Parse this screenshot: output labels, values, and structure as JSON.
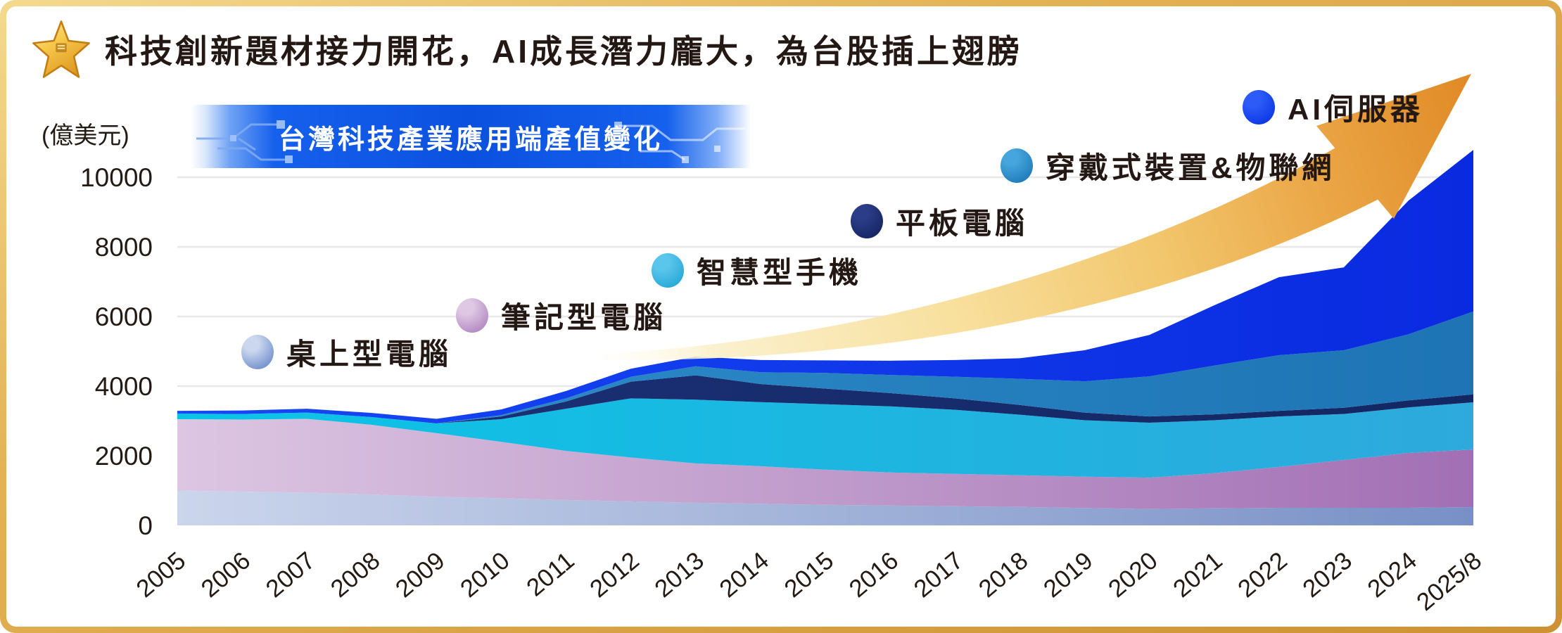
{
  "header": {
    "title": "科技創新題材接力開花，AI成長潛力龐大，為台股插上翅膀"
  },
  "banner": {
    "title": "台灣科技產業應用端產值變化"
  },
  "axis": {
    "unit_label": "(億美元)"
  },
  "icons": {
    "header_icon": "gold-star-icon",
    "trend_icon": "growth-arrow-icon",
    "banner_decor": "circuit-pattern-icon"
  },
  "colors": {
    "frame_gold_light": "#F4D98E",
    "frame_gold_dark": "#CE9232",
    "banner_blue": "#0B51E0",
    "text": "#231813",
    "gridline": "#EAE8E7",
    "arrow_tail": "#FDF4D5",
    "arrow_head": "#E08A26"
  },
  "chart_data": {
    "type": "area",
    "stacked": true,
    "title": "台灣科技產業應用端產值變化",
    "unit": "億美元",
    "xlabel": "",
    "ylabel": "(億美元)",
    "ylim": [
      0,
      11000
    ],
    "yticks": [
      0,
      2000,
      4000,
      6000,
      8000,
      10000
    ],
    "grid": true,
    "legend_position": "floating-diagonal-above-areas",
    "categories": [
      "2005",
      "2006",
      "2007",
      "2008",
      "2009",
      "2010",
      "2011",
      "2012",
      "2013",
      "2014",
      "2015",
      "2016",
      "2017",
      "2018",
      "2019",
      "2020",
      "2021",
      "2022",
      "2023",
      "2024",
      "2025/8"
    ],
    "series": [
      {
        "name": "桌上型電腦",
        "values": [
          1000,
          970,
          940,
          890,
          820,
          780,
          730,
          690,
          650,
          620,
          590,
          570,
          550,
          530,
          500,
          470,
          490,
          505,
          505,
          505,
          525
        ],
        "fill_left": "#CBD5EC",
        "fill_right": "#7890C6",
        "marker_light": "#CBD7EE",
        "marker_dark": "#5F80C6"
      },
      {
        "name": "筆記型電腦",
        "values": [
          2050,
          2070,
          2120,
          2000,
          1830,
          1620,
          1410,
          1260,
          1130,
          1080,
          1010,
          950,
          930,
          910,
          900,
          900,
          1010,
          1175,
          1375,
          1575,
          1655
        ],
        "fill_left": "#DCC6E2",
        "fill_right": "#A26FB4",
        "marker_light": "#DFC8E4",
        "marker_dark": "#A97ABA"
      },
      {
        "name": "智慧型手機",
        "values": [
          160,
          160,
          180,
          220,
          280,
          650,
          1210,
          1700,
          1830,
          1840,
          1880,
          1900,
          1840,
          1740,
          1620,
          1580,
          1520,
          1450,
          1320,
          1310,
          1355
        ],
        "fill_left": "#0AC4E6",
        "fill_right": "#2EA9DC",
        "marker_light": "#5BC6EC",
        "marker_dark": "#1BA2D2"
      },
      {
        "name": "平板電腦",
        "values": [
          0,
          0,
          0,
          0,
          0,
          80,
          210,
          480,
          700,
          520,
          450,
          380,
          330,
          280,
          220,
          180,
          170,
          160,
          180,
          200,
          230
        ],
        "fill_left": "#1C3278",
        "fill_right": "#132763",
        "marker_light": "#2B3D88",
        "marker_dark": "#101F5A"
      },
      {
        "name": "穿戴式裝置&物聯網",
        "values": [
          0,
          0,
          0,
          0,
          0,
          40,
          90,
          140,
          260,
          340,
          450,
          520,
          620,
          750,
          900,
          1150,
          1400,
          1600,
          1650,
          1900,
          2380
        ],
        "fill_left": "#2F8FCC",
        "fill_right": "#1E74B4",
        "marker_light": "#45A5DC",
        "marker_dark": "#1872B2"
      },
      {
        "name": "AI伺服器",
        "values": [
          80,
          100,
          110,
          120,
          130,
          160,
          210,
          230,
          280,
          350,
          360,
          410,
          480,
          590,
          890,
          1190,
          1730,
          2240,
          2380,
          3840,
          4640
        ],
        "fill_left": "#1648F4",
        "fill_right": "#0A2AE0",
        "marker_light": "#2E5BF8",
        "marker_dark": "#0330E0"
      }
    ]
  }
}
